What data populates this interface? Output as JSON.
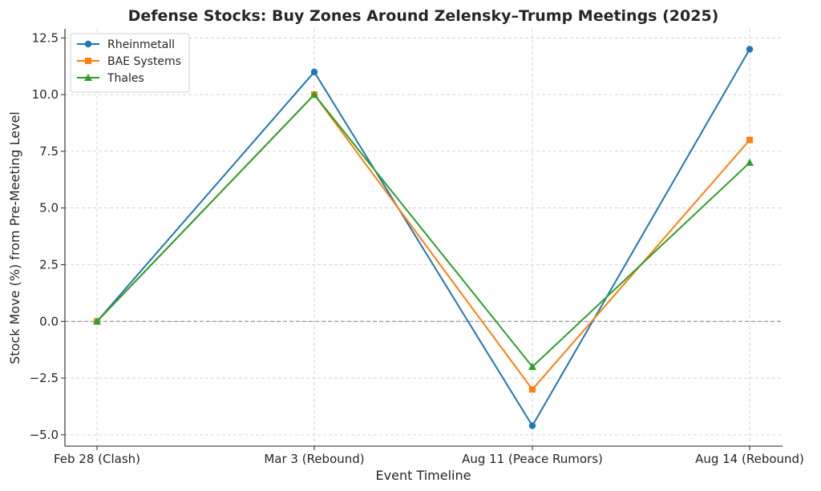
{
  "chart_data": {
    "type": "line",
    "title": "Defense Stocks: Buy Zones Around Zelensky–Trump Meetings (2025)",
    "xlabel": "Event Timeline",
    "ylabel": "Stock Move (%) from Pre-Meeting Level",
    "categories": [
      "Feb 28 (Clash)",
      "Mar 3 (Rebound)",
      "Aug 11 (Peace Rumors)",
      "Aug 14 (Rebound)"
    ],
    "ylim": [
      -5.5,
      12.9
    ],
    "yticks": [
      -5.0,
      -2.5,
      0.0,
      2.5,
      5.0,
      7.5,
      10.0,
      12.5
    ],
    "ytick_labels": [
      "−5.0",
      "−2.5",
      "0.0",
      "2.5",
      "5.0",
      "7.5",
      "10.0",
      "12.5"
    ],
    "grid": true,
    "baseline": 0,
    "legend": "top-left",
    "series": [
      {
        "name": "Rheinmetall",
        "values": [
          0,
          11,
          -4.6,
          12
        ],
        "color": "#1f77b4",
        "marker": "circle"
      },
      {
        "name": "BAE Systems",
        "values": [
          0,
          10,
          -3,
          8
        ],
        "color": "#ff7f0e",
        "marker": "square"
      },
      {
        "name": "Thales",
        "values": [
          0,
          10,
          -2,
          7
        ],
        "color": "#2ca02c",
        "marker": "triangle"
      }
    ]
  }
}
